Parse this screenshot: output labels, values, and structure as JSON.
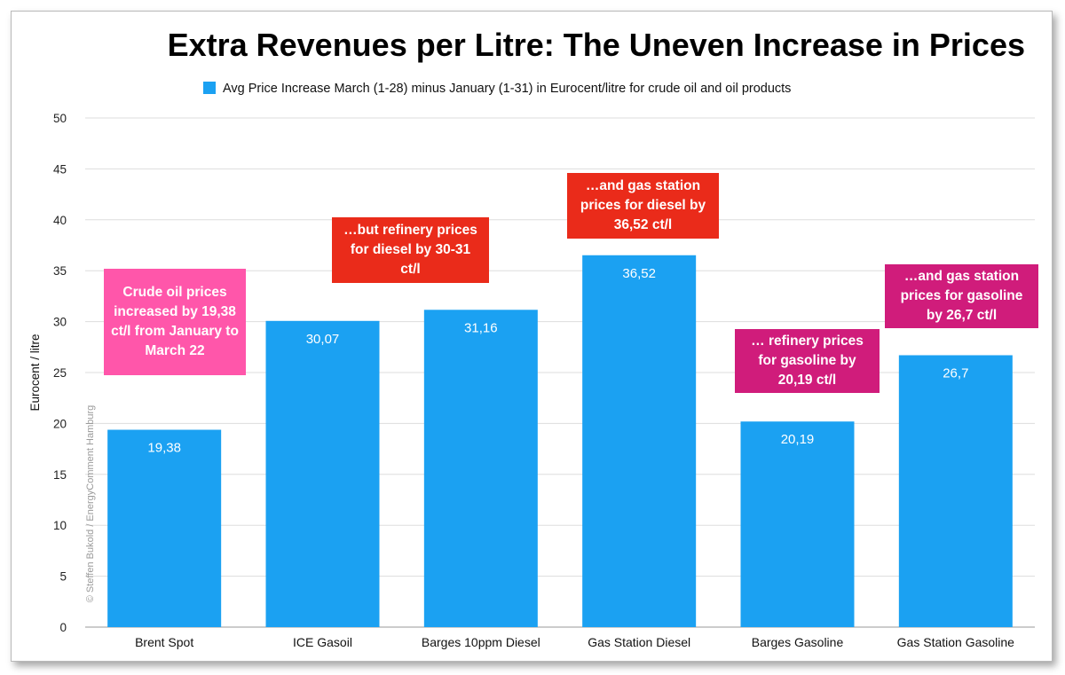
{
  "chart_data": {
    "type": "bar",
    "title": "Extra Revenues per Litre:  The Uneven Increase in Prices",
    "legend": "Avg Price Increase March (1-28) minus January (1-31) in Eurocent/litre for crude oil and oil products",
    "legend_position": "top",
    "ylabel": "Eurocent / litre",
    "xlabel": "",
    "ylim": [
      0,
      50
    ],
    "yticks": [
      0,
      5,
      10,
      15,
      20,
      25,
      30,
      35,
      40,
      45,
      50
    ],
    "grid": true,
    "categories": [
      "Brent Spot",
      "ICE Gasoil",
      "Barges 10ppm Diesel",
      "Gas Station Diesel",
      "Barges Gasoline",
      "Gas Station Gasoline"
    ],
    "values": [
      19.38,
      30.07,
      31.16,
      36.52,
      20.19,
      26.7
    ],
    "value_labels": [
      "19,38",
      "30,07",
      "31,16",
      "36,52",
      "20,19",
      "26,7"
    ],
    "bar_color": "#1ba1f2",
    "annotations": [
      {
        "text": "Crude oil prices increased by 19,38 ct/l from January to March 22",
        "color": "#ff56aa"
      },
      {
        "text": "…but refinery prices for diesel by 30-31 ct/l",
        "color": "#ea2b1a"
      },
      {
        "text": "…and gas station prices for diesel by 36,52 ct/l",
        "color": "#ea2b1a"
      },
      {
        "text": "… refinery prices for gasoline by 20,19 ct/l",
        "color": "#d01c7b"
      },
      {
        "text": "…and gas station prices for gasoline by 26,7 ct/l",
        "color": "#d01c7b"
      }
    ],
    "credit": "© Steffen Bukold / EnergyComment Hamburg"
  }
}
